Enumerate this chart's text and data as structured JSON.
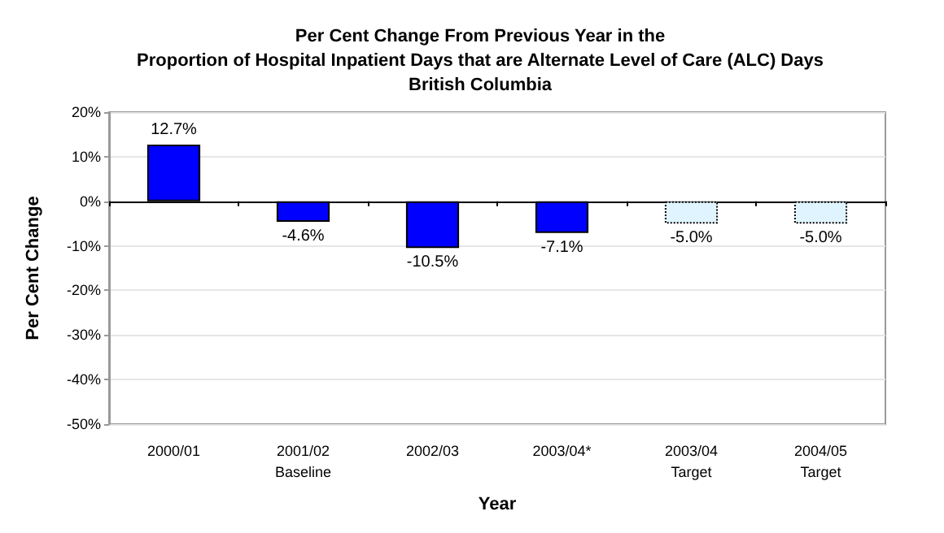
{
  "chart_data": {
    "type": "bar",
    "title": "Per Cent Change From Previous Year in the\nProportion of Hospital Inpatient Days that are Alternate Level of Care (ALC) Days\nBritish Columbia",
    "xlabel": "Year",
    "ylabel": "Per Cent Change",
    "categories": [
      "2000/01",
      "2001/02\nBaseline",
      "2002/03",
      "2003/04*",
      "2003/04\nTarget",
      "2004/05\nTarget"
    ],
    "series": [
      {
        "color": "#0000ff",
        "values": [
          12.7,
          -4.6,
          -10.5,
          -7.1,
          null,
          null
        ],
        "value_labels": [
          "12.7%",
          "-4.6%",
          "-10.5%",
          "-7.1%",
          null,
          null
        ]
      },
      {
        "color": "#e0f4ff",
        "line_style": "dotted",
        "values": [
          null,
          null,
          null,
          null,
          -5.0,
          -5.0
        ],
        "value_labels": [
          null,
          null,
          null,
          null,
          "-5.0%",
          "-5.0%"
        ]
      }
    ],
    "ylim": [
      -50,
      20
    ],
    "yticks": [
      {
        "value": -50,
        "label": "-50%"
      },
      {
        "value": -40,
        "label": "-40%"
      },
      {
        "value": -30,
        "label": "-30%"
      },
      {
        "value": -20,
        "label": "-20%"
      },
      {
        "value": -10,
        "label": "-10%"
      },
      {
        "value": 0,
        "label": "0%"
      },
      {
        "value": 10,
        "label": "10%"
      },
      {
        "value": 20,
        "label": "20%"
      }
    ],
    "grid": "y"
  }
}
